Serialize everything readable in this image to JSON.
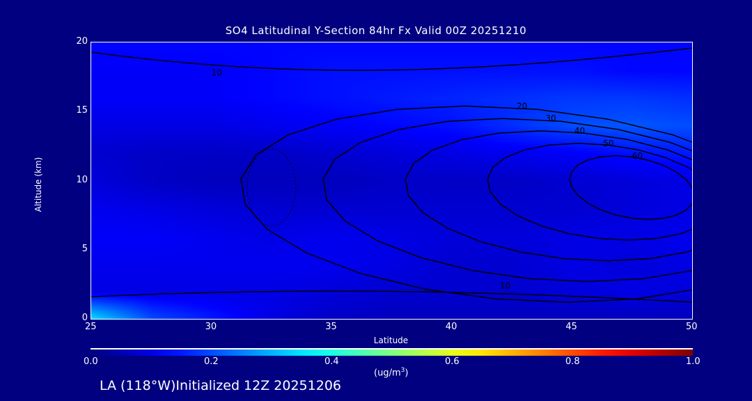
{
  "chart_data": {
    "type": "heatmap",
    "title": "SO4 Latitudinal Y-Section 84hr  Fx Valid 00Z 20251210",
    "xlabel": "Latitude",
    "ylabel": "Altitude (km)",
    "xlim": [
      25,
      50
    ],
    "ylim": [
      0,
      20
    ],
    "xticks": [
      "25",
      "30",
      "35",
      "40",
      "45",
      "50"
    ],
    "yticks": [
      "0",
      "5",
      "10",
      "15",
      "20"
    ],
    "colorbar": {
      "range": [
        0,
        1
      ],
      "ticks": [
        "0.0",
        "0.2",
        "0.4",
        "0.6",
        "0.8",
        "1.0"
      ],
      "units_prefix": "(ug/m",
      "units_sup": "3",
      "units_suffix": ")",
      "colormap": "jet"
    },
    "grid_lat": [
      25,
      27.5,
      30,
      32.5,
      35,
      37.5,
      40,
      42.5,
      45,
      47.5,
      50
    ],
    "grid_alt": [
      0,
      2,
      4,
      6,
      8,
      10,
      12,
      14,
      16,
      18,
      20
    ],
    "values": [
      [
        0.35,
        0.2,
        0.15,
        0.1,
        0.07,
        0.06,
        0.06,
        0.06,
        0.06,
        0.06,
        0.06
      ],
      [
        0.1,
        0.1,
        0.1,
        0.1,
        0.09,
        0.08,
        0.08,
        0.08,
        0.09,
        0.1,
        0.09
      ],
      [
        0.11,
        0.11,
        0.11,
        0.11,
        0.11,
        0.1,
        0.08,
        0.08,
        0.1,
        0.09,
        0.1
      ],
      [
        0.12,
        0.12,
        0.11,
        0.1,
        0.11,
        0.1,
        0.09,
        0.09,
        0.1,
        0.1,
        0.11
      ],
      [
        0.11,
        0.1,
        0.09,
        0.08,
        0.08,
        0.08,
        0.08,
        0.08,
        0.08,
        0.09,
        0.1
      ],
      [
        0.09,
        0.07,
        0.06,
        0.06,
        0.06,
        0.07,
        0.07,
        0.07,
        0.08,
        0.09,
        0.1
      ],
      [
        0.08,
        0.07,
        0.07,
        0.07,
        0.08,
        0.09,
        0.1,
        0.11,
        0.12,
        0.14,
        0.15
      ],
      [
        0.1,
        0.1,
        0.1,
        0.11,
        0.12,
        0.13,
        0.14,
        0.17,
        0.2,
        0.21,
        0.2
      ],
      [
        0.12,
        0.12,
        0.12,
        0.13,
        0.14,
        0.15,
        0.16,
        0.17,
        0.18,
        0.18,
        0.17
      ],
      [
        0.12,
        0.12,
        0.12,
        0.13,
        0.14,
        0.14,
        0.14,
        0.14,
        0.14,
        0.13,
        0.13
      ],
      [
        0.13,
        0.13,
        0.13,
        0.13,
        0.13,
        0.13,
        0.13,
        0.13,
        0.13,
        0.13,
        0.13
      ]
    ],
    "contour_levels": [
      "60",
      "50",
      "40",
      "30",
      "20",
      "10"
    ],
    "contour_center": {
      "lat": 47.5,
      "alt": 9.5
    }
  },
  "footer": "LA (118°W)Initialized 12Z 20251206"
}
